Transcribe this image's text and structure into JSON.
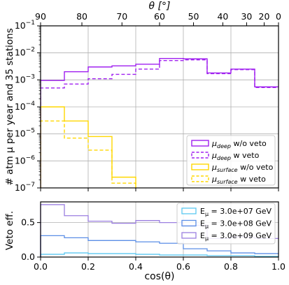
{
  "chart_data": [
    {
      "type": "line",
      "drawstyle": "steps",
      "yscale": "log",
      "ylabel": "# atm μ per year and 35 stations",
      "top_xlabel": "θ [°]",
      "xlim": [
        0,
        1
      ],
      "ylim": [
        1e-07,
        0.1
      ],
      "x_edges": [
        0,
        0.1,
        0.2,
        0.3,
        0.4,
        0.5,
        0.6,
        0.7,
        0.8,
        0.9,
        1.0
      ],
      "yticks": [
        "10^-7",
        "10^-6",
        "10^-5",
        "10^-4",
        "10^-3",
        "10^-2",
        "10^-1"
      ],
      "top_ticks": [
        {
          "label": "90",
          "cos": 0.0
        },
        {
          "label": "80",
          "cos": 0.1736
        },
        {
          "label": "70",
          "cos": 0.342
        },
        {
          "label": "60",
          "cos": 0.5
        },
        {
          "label": "50",
          "cos": 0.6428
        },
        {
          "label": "40",
          "cos": 0.766
        },
        {
          "label": "30",
          "cos": 0.866
        },
        {
          "label": "20",
          "cos": 0.9397
        },
        {
          "label": "0",
          "cos": 1.0
        }
      ],
      "grid": true,
      "legend_position": "lower right",
      "series": [
        {
          "name": "μ_deep w/o veto",
          "name_main": "μ",
          "name_sub": "deep",
          "name_rest": " w/o veto",
          "color": "#a020f0",
          "dashed": false,
          "values": [
            0.00095,
            0.002,
            0.003,
            0.0033,
            0.0038,
            0.0062,
            0.006,
            0.0018,
            0.0025,
            0.00055
          ]
        },
        {
          "name": "μ_deep w veto",
          "name_main": "μ",
          "name_sub": "deep",
          "name_rest": " w veto",
          "color": "#a020f0",
          "dashed": true,
          "values": [
            0.0005,
            0.0007,
            0.0011,
            0.0016,
            0.0025,
            0.0052,
            0.0055,
            0.0017,
            0.0024,
            0.00052
          ]
        },
        {
          "name": "μ_surface w/o veto",
          "name_main": "μ",
          "name_sub": "surface",
          "name_rest": " w/o veto",
          "color": "#ffd700",
          "dashed": false,
          "values": [
            0.0001,
            3e-05,
            8e-06,
            2.5e-07,
            null,
            null,
            null,
            null,
            null,
            null
          ]
        },
        {
          "name": "μ_surface w veto",
          "name_main": "μ",
          "name_sub": "surface",
          "name_rest": " w veto",
          "color": "#ffd700",
          "dashed": true,
          "values": [
            3e-05,
            7e-06,
            2.5e-06,
            1.5e-07,
            null,
            null,
            null,
            null,
            null,
            null
          ]
        }
      ]
    },
    {
      "type": "line",
      "drawstyle": "steps",
      "xlabel": "cos(θ)",
      "ylabel": "Veto eff.",
      "xlim": [
        0,
        1
      ],
      "ylim": [
        0,
        0.8
      ],
      "x_edges": [
        0,
        0.1,
        0.2,
        0.3,
        0.4,
        0.5,
        0.6,
        0.7,
        0.8,
        0.9,
        1.0
      ],
      "xticks": [
        "0.0",
        "0.2",
        "0.4",
        "0.6",
        "0.8",
        "1.0"
      ],
      "yticks": [
        "0.0",
        "0.5"
      ],
      "grid": true,
      "legend_position": "upper right",
      "series": [
        {
          "name": "Eμ = 3.0e+07 GeV",
          "name_main": "E",
          "name_sub": "μ",
          "name_rest": " = 3.0e+07 GeV",
          "color": "#5bc8f0",
          "values": [
            0.04,
            0.06,
            0.05,
            0.05,
            0.04,
            0.03,
            0.03,
            0.02,
            0.02,
            0.01
          ]
        },
        {
          "name": "Eμ = 3.0e+08 GeV",
          "name_main": "E",
          "name_sub": "μ",
          "name_rest": " = 3.0e+08 GeV",
          "color": "#5b8ee6",
          "values": [
            0.31,
            0.28,
            0.24,
            0.24,
            0.22,
            0.2,
            0.12,
            0.09,
            0.06,
            0.05
          ]
        },
        {
          "name": "Eμ = 3.0e+09 GeV",
          "name_main": "E",
          "name_sub": "μ",
          "name_rest": " = 3.0e+09 GeV",
          "color": "#9b7fe0",
          "values": [
            0.76,
            0.6,
            0.52,
            0.49,
            0.53,
            0.5,
            0.46,
            0.27,
            0.29,
            0.27
          ]
        }
      ]
    }
  ]
}
